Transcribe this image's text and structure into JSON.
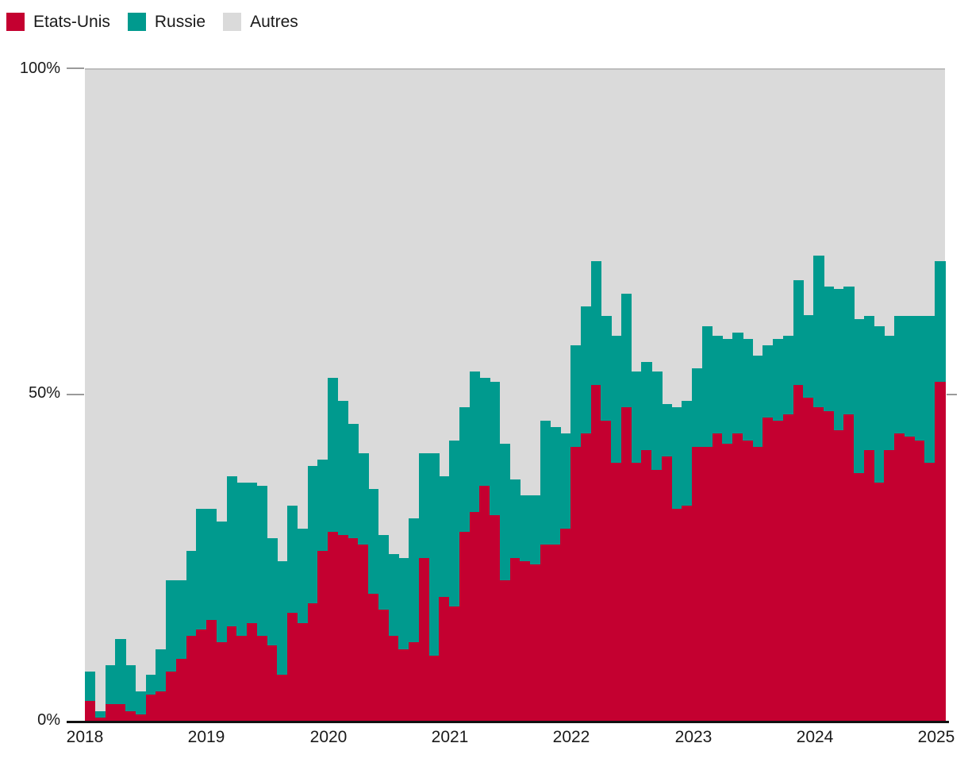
{
  "legend": [
    {
      "label": "Etats-Unis",
      "color": "#c40030"
    },
    {
      "label": "Russie",
      "color": "#009a8e"
    },
    {
      "label": "Autres",
      "color": "#dadada"
    }
  ],
  "y_axis": {
    "labels": [
      "100%",
      "50%",
      "0%"
    ]
  },
  "x_axis": {
    "labels": [
      "2018",
      "2019",
      "2020",
      "2021",
      "2022",
      "2023",
      "2024",
      "2025"
    ]
  },
  "chart_data": {
    "type": "bar",
    "stacking": "percent",
    "unit": "%",
    "ylim": [
      0,
      100
    ],
    "yticks": [
      "0%",
      "50%",
      "100%"
    ],
    "xticks": [
      "2018",
      "2019",
      "2020",
      "2021",
      "2022",
      "2023",
      "2024",
      "2025"
    ],
    "grid": "ticks-only",
    "legend_position": "top-left",
    "months": [
      "2018-01",
      "2018-02",
      "2018-03",
      "2018-04",
      "2018-05",
      "2018-06",
      "2018-07",
      "2018-08",
      "2018-09",
      "2018-10",
      "2018-11",
      "2018-12",
      "2019-01",
      "2019-02",
      "2019-03",
      "2019-04",
      "2019-05",
      "2019-06",
      "2019-07",
      "2019-08",
      "2019-09",
      "2019-10",
      "2019-11",
      "2019-12",
      "2020-01",
      "2020-02",
      "2020-03",
      "2020-04",
      "2020-05",
      "2020-06",
      "2020-07",
      "2020-08",
      "2020-09",
      "2020-10",
      "2020-11",
      "2020-12",
      "2021-01",
      "2021-02",
      "2021-03",
      "2021-04",
      "2021-05",
      "2021-06",
      "2021-07",
      "2021-08",
      "2021-09",
      "2021-10",
      "2021-11",
      "2021-12",
      "2022-01",
      "2022-02",
      "2022-03",
      "2022-04",
      "2022-05",
      "2022-06",
      "2022-07",
      "2022-08",
      "2022-09",
      "2022-10",
      "2022-11",
      "2022-12",
      "2023-01",
      "2023-02",
      "2023-03",
      "2023-04",
      "2023-05",
      "2023-06",
      "2023-07",
      "2023-08",
      "2023-09",
      "2023-10",
      "2023-11",
      "2023-12",
      "2024-01",
      "2024-02",
      "2024-03",
      "2024-04",
      "2024-05",
      "2024-06",
      "2024-07",
      "2024-08",
      "2024-09",
      "2024-10",
      "2024-11",
      "2024-12",
      "2025-01"
    ],
    "series": [
      {
        "name": "Etats-Unis",
        "color": "#c40030",
        "values": [
          3,
          0.5,
          2.5,
          2.5,
          1.5,
          1,
          4,
          4.5,
          7.5,
          9.5,
          13,
          14,
          15.5,
          12,
          14.5,
          13,
          15,
          13,
          11.5,
          7,
          16.5,
          15,
          18,
          26,
          29,
          28.5,
          28,
          27,
          19.5,
          17,
          13,
          11,
          12,
          25,
          10,
          19,
          17.5,
          29,
          32,
          36,
          31.5,
          21.5,
          25,
          24.5,
          24,
          27,
          27,
          29.5,
          42,
          44,
          51.5,
          46,
          39.5,
          48,
          39.5,
          41.5,
          38.5,
          40.5,
          32.5,
          33,
          42,
          42,
          44,
          42.5,
          44,
          43,
          42,
          46.5,
          46,
          47,
          51.5,
          49.5,
          48,
          47.5,
          44.5,
          47,
          38,
          41.5,
          36.5,
          41.5,
          44,
          43.5,
          43,
          39.5,
          52
        ]
      },
      {
        "name": "Russie",
        "color": "#009a8e",
        "values": [
          4.5,
          1,
          6,
          10,
          7,
          3.5,
          3,
          6.5,
          14,
          12,
          13,
          18.5,
          17,
          18.5,
          23,
          23.5,
          21.5,
          23,
          16.5,
          17.5,
          16.5,
          14.5,
          21,
          14,
          23.5,
          20.5,
          17.5,
          14,
          16,
          11.5,
          12.5,
          14,
          19,
          16,
          31,
          18.5,
          25.5,
          19,
          21.5,
          16.5,
          20.5,
          21,
          12,
          10,
          10.5,
          19,
          18,
          14.5,
          15.5,
          19.5,
          19,
          16,
          19.5,
          17.5,
          14,
          13.5,
          15,
          8,
          15.5,
          16,
          12,
          18.5,
          15,
          16,
          15.5,
          15.5,
          14,
          11,
          12.5,
          12,
          16,
          12.7,
          23.3,
          19,
          21.7,
          19.5,
          23.5,
          20.5,
          24,
          17.5,
          18,
          18.5,
          19,
          22.5,
          18.5
        ]
      },
      {
        "name": "Autres",
        "color": "#dadada",
        "values_rule": "remainder-to-100"
      }
    ]
  }
}
